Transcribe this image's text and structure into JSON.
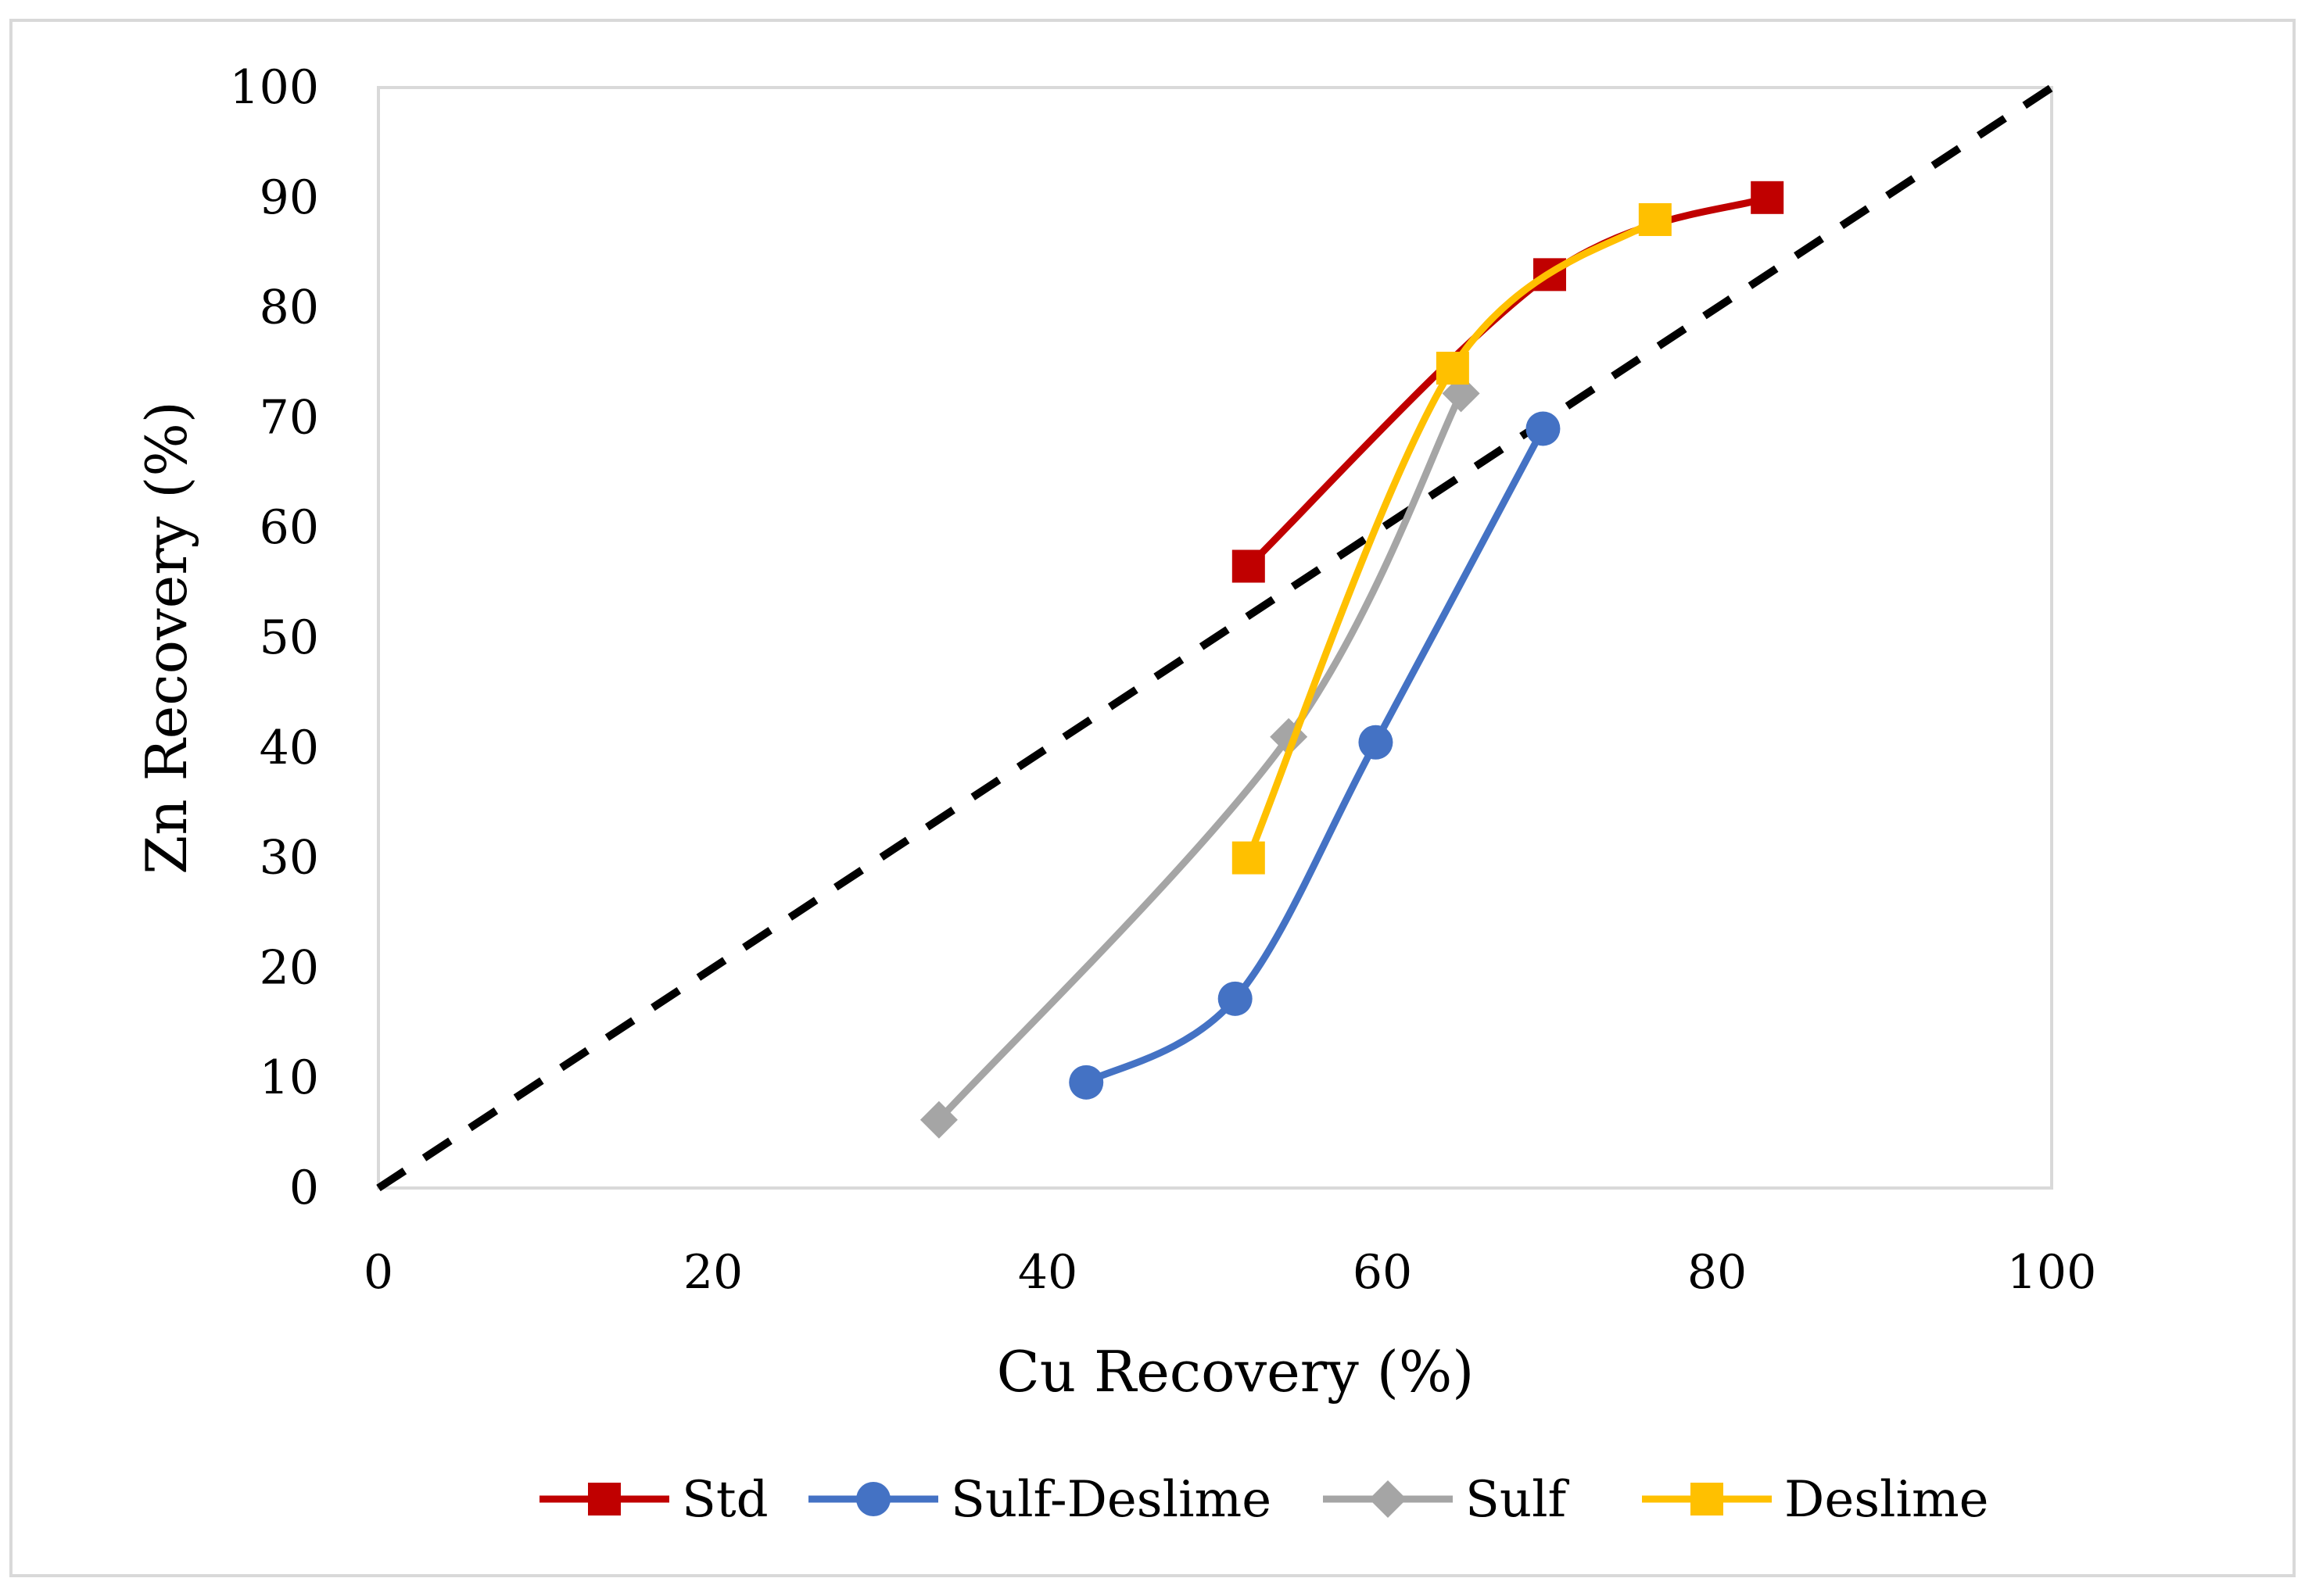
{
  "chart_data": {
    "type": "line",
    "title": "",
    "xlabel": "Cu Recovery (%)",
    "ylabel": "Zn Recovery (%)",
    "xlim": [
      0,
      100
    ],
    "ylim": [
      0,
      100
    ],
    "x_ticks": [
      "0",
      "20",
      "40",
      "60",
      "80",
      "100"
    ],
    "y_ticks": [
      "0",
      "10",
      "20",
      "30",
      "40",
      "50",
      "60",
      "70",
      "80",
      "90",
      "100"
    ],
    "grid": false,
    "legend_position": "bottom",
    "reference_line": {
      "name": "y = x",
      "x": [
        0,
        100
      ],
      "y": [
        0,
        100
      ],
      "style": "dashed",
      "color": "#000000"
    },
    "series": [
      {
        "name": "Std",
        "color": "#C00000",
        "marker": "square",
        "x": [
          52,
          70,
          83
        ],
        "y": [
          56.5,
          83,
          90
        ]
      },
      {
        "name": "Sulf-Deslime",
        "color": "#4472C4",
        "marker": "circle",
        "x": [
          42.3,
          51.2,
          59.6,
          69.6
        ],
        "y": [
          9.6,
          17.2,
          40.5,
          69
        ]
      },
      {
        "name": "Sulf",
        "color": "#A5A5A5",
        "marker": "diamond",
        "x": [
          33.5,
          54.4,
          64.7
        ],
        "y": [
          6.2,
          41,
          72.2
        ]
      },
      {
        "name": "Deslime",
        "color": "#FFC000",
        "marker": "square",
        "x": [
          52,
          64.2,
          76.3
        ],
        "y": [
          30,
          74.5,
          88
        ]
      }
    ]
  }
}
